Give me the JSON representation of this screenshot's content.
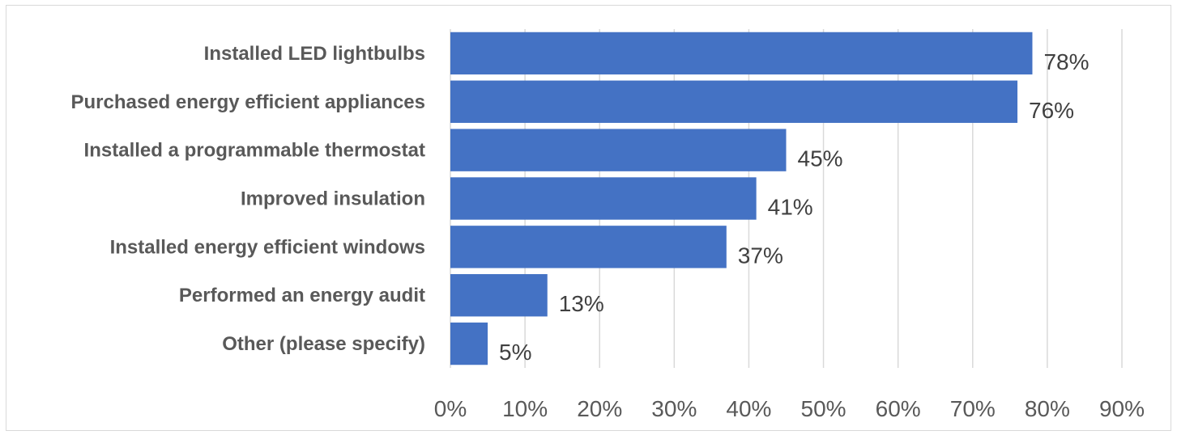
{
  "chart_data": {
    "type": "bar",
    "orientation": "horizontal",
    "categories": [
      "Installed LED lightbulbs",
      "Purchased energy efficient appliances",
      "Installed a programmable thermostat",
      "Improved insulation",
      "Installed energy efficient windows",
      "Performed an energy audit",
      "Other (please specify)"
    ],
    "values": [
      78,
      76,
      45,
      41,
      37,
      13,
      5
    ],
    "value_labels": [
      "78%",
      "76%",
      "45%",
      "41%",
      "37%",
      "13%",
      "5%"
    ],
    "x_ticks": [
      0,
      10,
      20,
      30,
      40,
      50,
      60,
      70,
      80,
      90
    ],
    "x_tick_labels": [
      "0%",
      "10%",
      "20%",
      "30%",
      "40%",
      "50%",
      "60%",
      "70%",
      "80%",
      "90%"
    ],
    "xlim": [
      0,
      90
    ],
    "grid": "vertical",
    "legend": "none",
    "colors": {
      "bar": "#4472c4",
      "grid": "#d9d9d9"
    }
  }
}
